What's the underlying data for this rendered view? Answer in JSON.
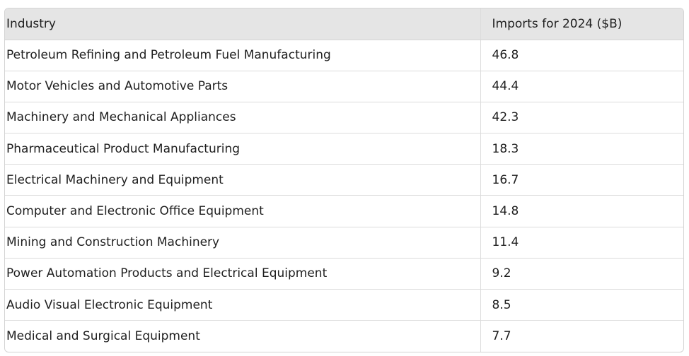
{
  "table": {
    "headers": {
      "industry": "Industry",
      "imports": "Imports for 2024 ($B)"
    },
    "rows": [
      {
        "industry": "Petroleum Refining and Petroleum Fuel Manufacturing",
        "imports": "46.8"
      },
      {
        "industry": "Motor Vehicles and Automotive Parts",
        "imports": "44.4"
      },
      {
        "industry": "Machinery and Mechanical Appliances",
        "imports": "42.3"
      },
      {
        "industry": "Pharmaceutical Product Manufacturing",
        "imports": "18.3"
      },
      {
        "industry": "Electrical Machinery and Equipment",
        "imports": "16.7"
      },
      {
        "industry": "Computer and Electronic Office Equipment",
        "imports": "14.8"
      },
      {
        "industry": "Mining and Construction Machinery",
        "imports": "11.4"
      },
      {
        "industry": "Power Automation Products and Electrical Equipment",
        "imports": "9.2"
      },
      {
        "industry": "Audio Visual Electronic Equipment",
        "imports": "8.5"
      },
      {
        "industry": "Medical and Surgical Equipment",
        "imports": "7.7"
      }
    ]
  },
  "chart_data": {
    "type": "table",
    "columns": [
      "Industry",
      "Imports for 2024 ($B)"
    ],
    "categories": [
      "Petroleum Refining and Petroleum Fuel Manufacturing",
      "Motor Vehicles and Automotive Parts",
      "Machinery and Mechanical Appliances",
      "Pharmaceutical Product Manufacturing",
      "Electrical Machinery and Equipment",
      "Computer and Electronic Office Equipment",
      "Mining and Construction Machinery",
      "Power Automation Products and Electrical Equipment",
      "Audio Visual Electronic Equipment",
      "Medical and Surgical Equipment"
    ],
    "values": [
      46.8,
      44.4,
      42.3,
      18.3,
      16.7,
      14.8,
      11.4,
      9.2,
      8.5,
      7.7
    ],
    "title": "",
    "xlabel": "",
    "ylabel": ""
  }
}
